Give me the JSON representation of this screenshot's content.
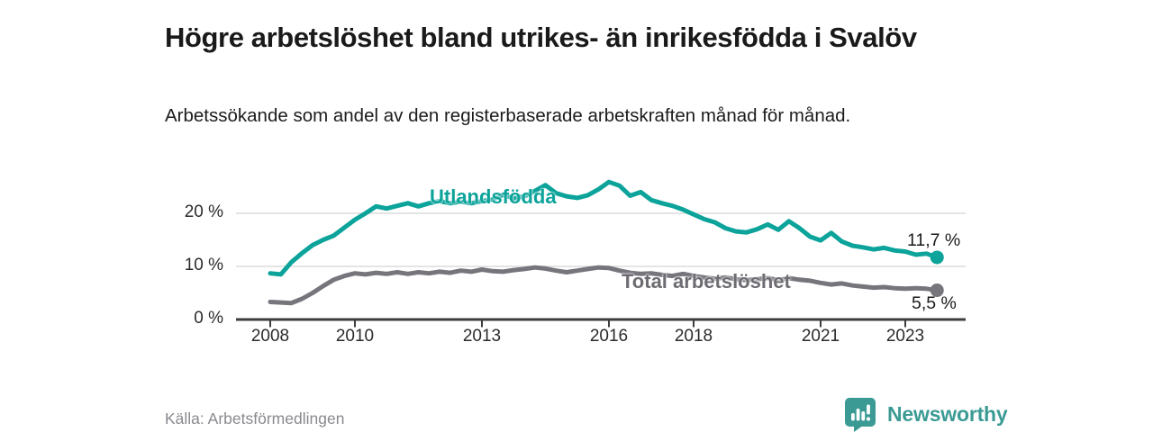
{
  "header": {
    "title": "Högre arbetslöshet bland utrikes- än inrikesfödda i Svalöv",
    "subtitle": "Arbetssökande som andel av den registerbaserade arbetskraften månad för månad."
  },
  "footer": {
    "source": "Källa: Arbetsförmedlingen",
    "brand": "Newsworthy"
  },
  "colors": {
    "foreign_born_line": "#0ba39a",
    "total_line": "#77757c",
    "foreign_born_label": "#0ba39a",
    "total_label": "#6e6c72",
    "axis": "#3d3d3d",
    "grid": "#dcdcdc",
    "text": "#1a1a1a",
    "brand_teal": "#3b9b94"
  },
  "chart_data": {
    "type": "line",
    "title": "Högre arbetslöshet bland utrikes- än inrikesfödda i Svalöv",
    "subtitle": "Arbetssökande som andel av den registerbaserade arbetskraften månad för månad.",
    "xlabel": "",
    "ylabel": "",
    "xlim": [
      2007.2,
      2024.4
    ],
    "ylim": [
      0,
      28
    ],
    "grid": "horizontal-y",
    "legend_position": "inline-labels",
    "x_ticks": [
      2008,
      2010,
      2013,
      2016,
      2018,
      2021,
      2023
    ],
    "x_tick_labels": [
      "2008",
      "2010",
      "2013",
      "2016",
      "2018",
      "2021",
      "2023"
    ],
    "y_ticks": [
      0,
      10,
      20
    ],
    "y_tick_labels": [
      "0 %",
      "10 %",
      "20 %"
    ],
    "series": [
      {
        "name": "Utlandsfödda",
        "color": "#0ba39a",
        "end_label": "11,7 %",
        "end_value": 11.7,
        "points": [
          [
            2008.0,
            8.7
          ],
          [
            2008.25,
            8.5
          ],
          [
            2008.5,
            10.8
          ],
          [
            2008.75,
            12.5
          ],
          [
            2009.0,
            14.0
          ],
          [
            2009.25,
            15.0
          ],
          [
            2009.5,
            15.8
          ],
          [
            2009.75,
            17.3
          ],
          [
            2010.0,
            18.8
          ],
          [
            2010.25,
            20.0
          ],
          [
            2010.5,
            21.3
          ],
          [
            2010.75,
            20.9
          ],
          [
            2011.0,
            21.4
          ],
          [
            2011.25,
            21.9
          ],
          [
            2011.5,
            21.3
          ],
          [
            2011.75,
            21.9
          ],
          [
            2012.0,
            22.3
          ],
          [
            2012.25,
            21.9
          ],
          [
            2012.5,
            22.2
          ],
          [
            2012.75,
            21.9
          ],
          [
            2013.0,
            22.3
          ],
          [
            2013.25,
            22.6
          ],
          [
            2013.5,
            23.5
          ],
          [
            2013.75,
            22.8
          ],
          [
            2014.0,
            23.2
          ],
          [
            2014.25,
            24.2
          ],
          [
            2014.5,
            25.3
          ],
          [
            2014.75,
            23.8
          ],
          [
            2015.0,
            23.2
          ],
          [
            2015.25,
            22.9
          ],
          [
            2015.5,
            23.4
          ],
          [
            2015.75,
            24.5
          ],
          [
            2016.0,
            25.9
          ],
          [
            2016.25,
            25.2
          ],
          [
            2016.5,
            23.3
          ],
          [
            2016.75,
            24.0
          ],
          [
            2017.0,
            22.5
          ],
          [
            2017.25,
            21.9
          ],
          [
            2017.5,
            21.4
          ],
          [
            2017.75,
            20.7
          ],
          [
            2018.0,
            19.8
          ],
          [
            2018.25,
            18.9
          ],
          [
            2018.5,
            18.3
          ],
          [
            2018.75,
            17.2
          ],
          [
            2019.0,
            16.6
          ],
          [
            2019.25,
            16.4
          ],
          [
            2019.5,
            17.0
          ],
          [
            2019.75,
            17.9
          ],
          [
            2020.0,
            16.9
          ],
          [
            2020.25,
            18.5
          ],
          [
            2020.5,
            17.2
          ],
          [
            2020.75,
            15.6
          ],
          [
            2021.0,
            14.9
          ],
          [
            2021.25,
            16.3
          ],
          [
            2021.5,
            14.7
          ],
          [
            2021.75,
            13.9
          ],
          [
            2022.0,
            13.6
          ],
          [
            2022.25,
            13.2
          ],
          [
            2022.5,
            13.5
          ],
          [
            2022.75,
            13.0
          ],
          [
            2023.0,
            12.8
          ],
          [
            2023.25,
            12.2
          ],
          [
            2023.5,
            12.4
          ],
          [
            2023.75,
            11.7
          ]
        ]
      },
      {
        "name": "Total arbetslöshet",
        "color": "#77757c",
        "end_label": "5,5 %",
        "end_value": 5.5,
        "points": [
          [
            2008.0,
            3.3
          ],
          [
            2008.25,
            3.2
          ],
          [
            2008.5,
            3.1
          ],
          [
            2008.75,
            3.9
          ],
          [
            2009.0,
            5.0
          ],
          [
            2009.25,
            6.3
          ],
          [
            2009.5,
            7.5
          ],
          [
            2009.75,
            8.2
          ],
          [
            2010.0,
            8.7
          ],
          [
            2010.25,
            8.5
          ],
          [
            2010.5,
            8.8
          ],
          [
            2010.75,
            8.6
          ],
          [
            2011.0,
            8.9
          ],
          [
            2011.25,
            8.6
          ],
          [
            2011.5,
            8.9
          ],
          [
            2011.75,
            8.7
          ],
          [
            2012.0,
            9.0
          ],
          [
            2012.25,
            8.8
          ],
          [
            2012.5,
            9.2
          ],
          [
            2012.75,
            9.0
          ],
          [
            2013.0,
            9.4
          ],
          [
            2013.25,
            9.1
          ],
          [
            2013.5,
            9.0
          ],
          [
            2013.75,
            9.3
          ],
          [
            2014.0,
            9.5
          ],
          [
            2014.25,
            9.8
          ],
          [
            2014.5,
            9.6
          ],
          [
            2014.75,
            9.2
          ],
          [
            2015.0,
            8.9
          ],
          [
            2015.25,
            9.2
          ],
          [
            2015.5,
            9.5
          ],
          [
            2015.75,
            9.8
          ],
          [
            2016.0,
            9.7
          ],
          [
            2016.25,
            9.2
          ],
          [
            2016.5,
            8.8
          ],
          [
            2016.75,
            8.6
          ],
          [
            2017.0,
            8.7
          ],
          [
            2017.25,
            8.4
          ],
          [
            2017.5,
            8.2
          ],
          [
            2017.75,
            8.6
          ],
          [
            2018.0,
            8.2
          ],
          [
            2018.25,
            7.9
          ],
          [
            2018.5,
            7.7
          ],
          [
            2018.75,
            7.9
          ],
          [
            2019.0,
            7.6
          ],
          [
            2019.25,
            7.4
          ],
          [
            2019.5,
            7.6
          ],
          [
            2019.75,
            7.8
          ],
          [
            2020.0,
            7.4
          ],
          [
            2020.25,
            7.8
          ],
          [
            2020.5,
            7.5
          ],
          [
            2020.75,
            7.3
          ],
          [
            2021.0,
            6.9
          ],
          [
            2021.25,
            6.6
          ],
          [
            2021.5,
            6.8
          ],
          [
            2021.75,
            6.4
          ],
          [
            2022.0,
            6.2
          ],
          [
            2022.25,
            6.0
          ],
          [
            2022.5,
            6.1
          ],
          [
            2022.75,
            5.9
          ],
          [
            2023.0,
            5.8
          ],
          [
            2023.25,
            5.9
          ],
          [
            2023.5,
            5.8
          ],
          [
            2023.75,
            5.5
          ]
        ]
      }
    ]
  }
}
